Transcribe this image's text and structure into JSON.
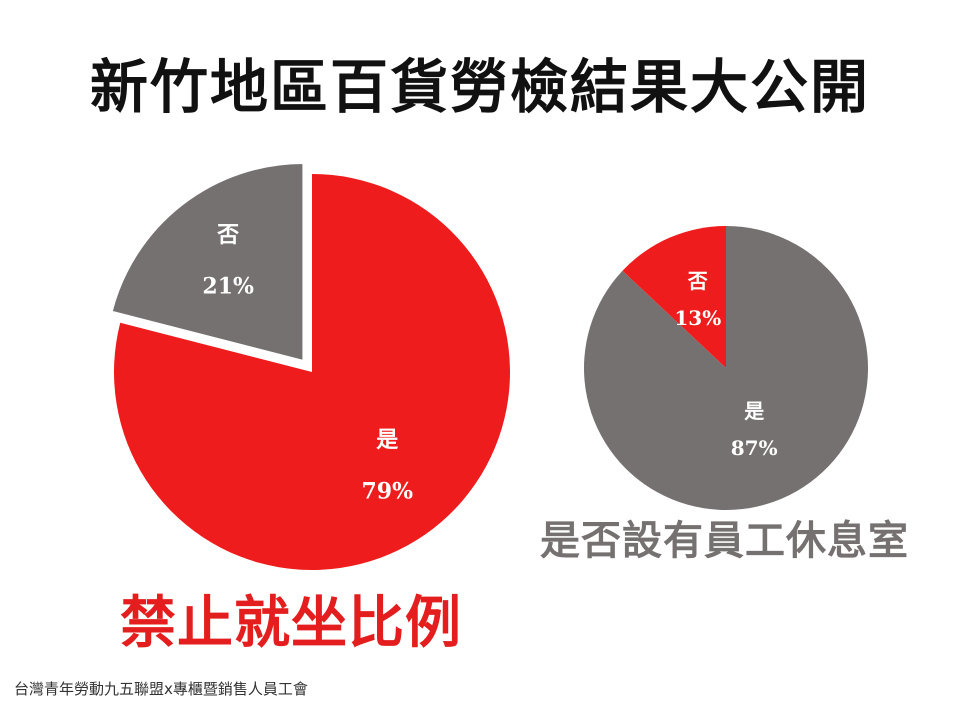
{
  "title": "新竹地區百貨勞檢結果大公開",
  "footer": "台灣青年勞動九五聯盟x專櫃暨銷售人員工會",
  "colors": {
    "red": "#ee1c1c",
    "gray": "#767171",
    "white": "#ffffff"
  },
  "chart_data": [
    {
      "type": "pie",
      "title": "禁止就坐比例",
      "title_color": "#e41e1e",
      "slices": [
        {
          "label": "是",
          "value": 79,
          "percent_label": "79%",
          "color": "#ee1c1c",
          "exploded": false
        },
        {
          "label": "否",
          "value": 21,
          "percent_label": "21%",
          "color": "#767171",
          "exploded": true
        }
      ]
    },
    {
      "type": "pie",
      "title": "是否設有員工休息室",
      "title_color": "#767171",
      "slices": [
        {
          "label": "是",
          "value": 87,
          "percent_label": "87%",
          "color": "#767171",
          "exploded": false
        },
        {
          "label": "否",
          "value": 13,
          "percent_label": "13%",
          "color": "#ee1c1c",
          "exploded": false
        }
      ]
    }
  ]
}
